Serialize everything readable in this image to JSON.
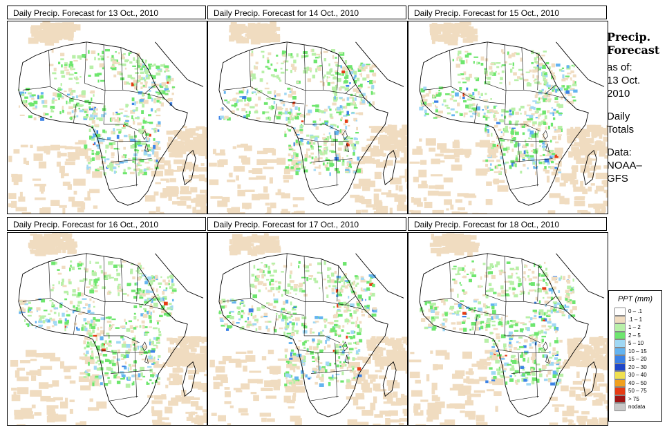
{
  "panels": [
    {
      "title": "Daily Precip. Forecast for  13 Oct., 2010"
    },
    {
      "title": "Daily Precip. Forecast for  14 Oct., 2010"
    },
    {
      "title": "Daily Precip. Forecast for  15 Oct., 2010"
    },
    {
      "title": "Daily Precip. Forecast for  16 Oct., 2010"
    },
    {
      "title": "Daily Precip. Forecast for  17 Oct., 2010"
    },
    {
      "title": "Daily Precip. Forecast for  18 Oct., 2010"
    }
  ],
  "info": {
    "heading1": "Precip.",
    "heading2": "Forecast",
    "asof": "as of:",
    "date1": "13 Oct.",
    "date2": "2010",
    "totals1": "Daily",
    "totals2": "Totals",
    "data1": "Data:",
    "data2": "NOAA–",
    "data3": "GFS"
  },
  "legend": {
    "title": "PPT (mm)",
    "items": [
      {
        "label": "0 – .1",
        "color": "#ffffff"
      },
      {
        "label": ".1 – 1",
        "color": "#f0dcc0"
      },
      {
        "label": "1 – 2",
        "color": "#b8f0a8"
      },
      {
        "label": "2 – 5",
        "color": "#6ee66e"
      },
      {
        "label": "5 – 10",
        "color": "#a0d8f4"
      },
      {
        "label": "10 – 15",
        "color": "#64b4f0"
      },
      {
        "label": "15 – 20",
        "color": "#3c82e6"
      },
      {
        "label": "20 – 30",
        "color": "#1e46c8"
      },
      {
        "label": "30 – 40",
        "color": "#f0e050"
      },
      {
        "label": "40 – 50",
        "color": "#f0a01e"
      },
      {
        "label": "50 – 75",
        "color": "#e63c14"
      },
      {
        "label": "> 75",
        "color": "#a01414"
      },
      {
        "label": "nodata",
        "color": "#c8c8c8"
      }
    ]
  }
}
